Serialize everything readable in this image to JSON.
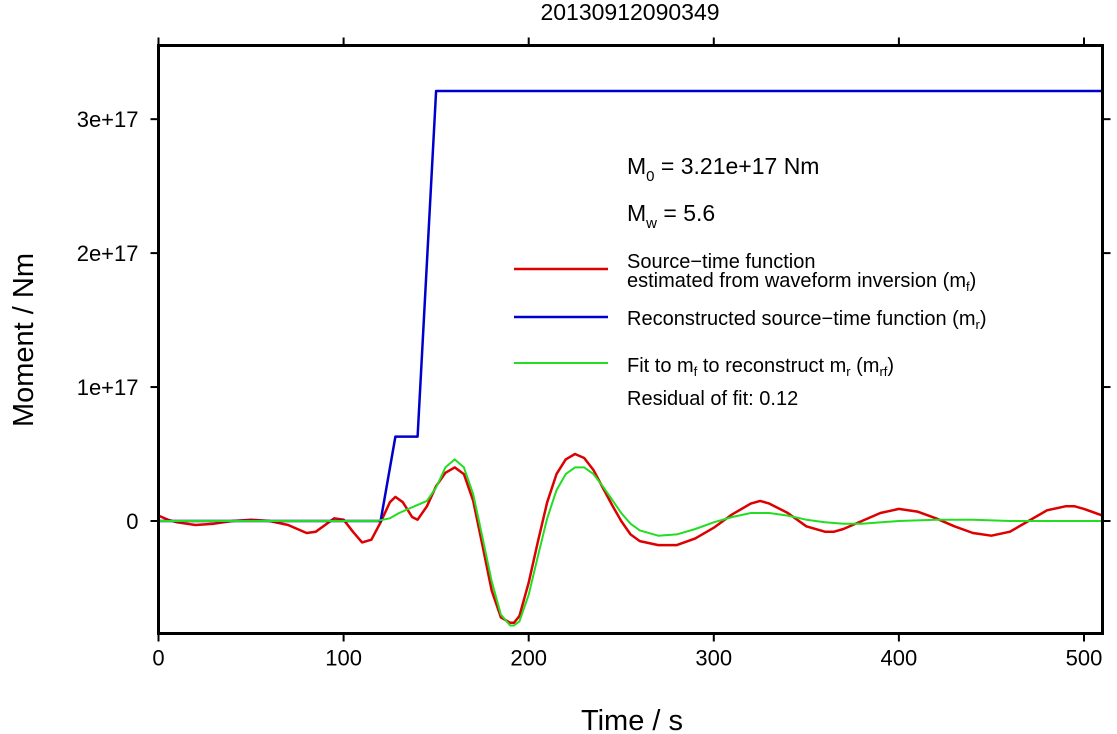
{
  "chart_data": {
    "type": "line",
    "title": "20130912090349",
    "xlabel": "Time / s",
    "ylabel": "Moment / Nm",
    "xlim": [
      0,
      510
    ],
    "ylim": [
      -8.4e+16,
      3.55e+17
    ],
    "x_ticks": [
      0,
      100,
      200,
      300,
      400,
      500
    ],
    "x_tick_labels": [
      "0",
      "100",
      "200",
      "300",
      "400",
      "500"
    ],
    "y_ticks": [
      0,
      1e+17,
      2e+17,
      3e+17
    ],
    "y_tick_labels": [
      "0",
      "1e+17",
      "2e+17",
      "3e+17"
    ],
    "grid": false,
    "legend_position": "right",
    "annotations": {
      "m0": {
        "prefix": "M",
        "sub": "0",
        "text": " = 3.21e+17 Nm"
      },
      "mw": {
        "prefix": "M",
        "sub": "w",
        "text": " = 5.6"
      },
      "residual": "Residual of fit: 0.12"
    },
    "legend": {
      "red_line1": "Source−time function",
      "red_line2": "estimated from waveform inversion (m",
      "red_sub": "f",
      "red_close": ")",
      "blue_text": "Reconstructed source−time function (m",
      "blue_sub": "r",
      "blue_close": ")",
      "green_a": "Fit to m",
      "green_sub1": "f",
      "green_b": " to reconstruct m",
      "green_sub2": "r",
      "green_c": " (m",
      "green_sub3": "rf",
      "green_close": ")"
    },
    "series": [
      {
        "color": "#dd0000",
        "x": [
          0,
          5,
          10,
          20,
          30,
          40,
          50,
          60,
          70,
          80,
          85,
          90,
          95,
          100,
          105,
          110,
          115,
          120,
          125,
          128,
          132,
          137,
          140,
          145,
          150,
          155,
          160,
          165,
          170,
          175,
          180,
          185,
          190,
          192,
          195,
          200,
          205,
          210,
          215,
          220,
          225,
          230,
          235,
          240,
          245,
          250,
          255,
          260,
          270,
          280,
          290,
          300,
          310,
          320,
          325,
          330,
          340,
          350,
          360,
          365,
          370,
          380,
          390,
          400,
          410,
          420,
          430,
          440,
          450,
          460,
          470,
          480,
          490,
          495,
          500,
          510
        ],
        "y": [
          4000000000000000.0,
          1000000000000000.0,
          -1000000000000000.0,
          -3000000000000000.0,
          -2000000000000000.0,
          0,
          1000000000000000.0,
          0,
          -3000000000000000.0,
          -9000000000000000.0,
          -8000000000000000.0,
          -3000000000000000.0,
          2000000000000000.0,
          1000000000000000.0,
          -8000000000000000.0,
          -1.6e+16,
          -1.4e+16,
          -1000000000000000.0,
          1.4e+16,
          1.8e+16,
          1.4e+16,
          3000000000000000.0,
          1000000000000000.0,
          1.1e+16,
          2.6e+16,
          3.6e+16,
          4e+16,
          3.5e+16,
          1.5e+16,
          -1.8e+16,
          -5.2e+16,
          -7.2e+16,
          -7.6e+16,
          -7.6e+16,
          -7.1e+16,
          -4.6e+16,
          -1.5e+16,
          1.4e+16,
          3.5e+16,
          4.6e+16,
          5e+16,
          4.7e+16,
          3.8e+16,
          2.5e+16,
          1.2e+16,
          0,
          -1e+16,
          -1.5e+16,
          -1.8e+16,
          -1.8e+16,
          -1.3e+16,
          -5000000000000000.0,
          5000000000000000.0,
          1.3e+16,
          1.5e+16,
          1.3e+16,
          6000000000000000.0,
          -4000000000000000.0,
          -8000000000000000.0,
          -8000000000000000.0,
          -6000000000000000.0,
          0,
          6000000000000000.0,
          9000000000000000.0,
          7000000000000000.0,
          2000000000000000.0,
          -4000000000000000.0,
          -9000000000000000.0,
          -1.1e+16,
          -8000000000000000.0,
          0,
          8000000000000000.0,
          1.1e+16,
          1.1e+16,
          9000000000000000.0,
          4000000000000000.0
        ]
      },
      {
        "color": "#0000cc",
        "x": [
          0,
          120,
          128,
          140,
          150,
          510
        ],
        "y": [
          0,
          0,
          6.3e+16,
          6.3e+16,
          3.21e+17,
          3.21e+17
        ]
      },
      {
        "color": "#22dd22",
        "x": [
          0,
          110,
          118,
          125,
          130,
          140,
          145,
          150,
          155,
          160,
          165,
          170,
          175,
          180,
          185,
          190,
          192,
          195,
          200,
          205,
          210,
          215,
          220,
          225,
          230,
          235,
          240,
          245,
          250,
          255,
          260,
          270,
          280,
          290,
          300,
          310,
          320,
          330,
          340,
          350,
          360,
          370,
          380,
          400,
          420,
          440,
          460,
          480,
          510
        ],
        "y": [
          0,
          0,
          0,
          2000000000000000.0,
          6000000000000000.0,
          1.2e+16,
          1.5e+16,
          2.5e+16,
          4e+16,
          4.6e+16,
          4e+16,
          2e+16,
          -1.2e+16,
          -4.5e+16,
          -7e+16,
          -7.8e+16,
          -7.8e+16,
          -7.5e+16,
          -5.5e+16,
          -2.6e+16,
          2000000000000000.0,
          2.3e+16,
          3.5e+16,
          4e+16,
          4e+16,
          3.5e+16,
          2.6e+16,
          1.6e+16,
          6000000000000000.0,
          -2000000000000000.0,
          -7000000000000000.0,
          -1.1e+16,
          -1e+16,
          -6000000000000000.0,
          -1000000000000000.0,
          3000000000000000.0,
          6000000000000000.0,
          6000000000000000.0,
          4000000000000000.0,
          1000000000000000.0,
          -1000000000000000.0,
          -2000000000000000.0,
          -2000000000000000.0,
          0,
          1000000000000000.0,
          1000000000000000.0,
          0,
          0,
          0
        ]
      }
    ]
  }
}
